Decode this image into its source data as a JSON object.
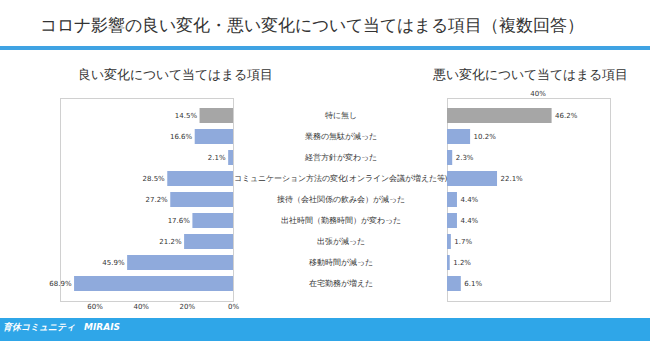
{
  "title": "コロナ影響の良い変化・悪い変化について当てはまる項目（複数回答）",
  "footer": "育休コミュニティ　MIRAIS",
  "chart_data": [
    {
      "type": "bar",
      "title": "良い変化について当てはまる項目",
      "orientation": "horizontal",
      "categories": [
        "特に無し",
        "業務の無駄が減った",
        "経営方針が変わった",
        "コミュニケーション方法の変化(オンライン会議が増えた等)",
        "接待（会社関係の飲み会）が減った",
        "出社時間（勤務時間）が変わった",
        "出張が減った",
        "移動時間が減った",
        "在宅勤務が増えた"
      ],
      "values": [
        14.5,
        16.6,
        2.1,
        28.5,
        27.2,
        17.6,
        21.2,
        45.9,
        68.9
      ],
      "value_labels": [
        "14.5%",
        "16.6%",
        "2.1%",
        "28.5%",
        "27.2%",
        "17.6%",
        "21.2%",
        "45.9%",
        "68.9%"
      ],
      "colors": [
        "#a6a6a6",
        "#8faadc",
        "#8faadc",
        "#8faadc",
        "#8faadc",
        "#8faadc",
        "#8faadc",
        "#8faadc",
        "#8faadc"
      ],
      "xlim": [
        0,
        75
      ],
      "xticks": [
        {
          "value": 60,
          "label": "60%"
        },
        {
          "value": 40,
          "label": "40%"
        },
        {
          "value": 20,
          "label": "20%"
        },
        {
          "value": 0,
          "label": "0%"
        }
      ],
      "data_labels": true,
      "tick_labels": "x"
    },
    {
      "type": "bar",
      "title": "悪い変化について当てはまる項目",
      "orientation": "horizontal",
      "categories": [
        "特に無し",
        "業務の無駄が減った",
        "経営方針が変わった",
        "コミュニケーション方法の変化(オンライン会議が増えた等)",
        "接待（会社関係の飲み会）が減った",
        "出社時間（勤務時間）が変わった",
        "出張が減った",
        "移動時間が減った",
        "在宅勤務が増えた"
      ],
      "values": [
        46.2,
        10.2,
        2.3,
        22.1,
        4.4,
        4.4,
        1.7,
        1.2,
        6.1
      ],
      "value_labels": [
        "46.2%",
        "10.2%",
        "2.3%",
        "22.1%",
        "4.4%",
        "4.4%",
        "1.7%",
        "1.2%",
        "6.1%"
      ],
      "colors": [
        "#a6a6a6",
        "#8faadc",
        "#8faadc",
        "#8faadc",
        "#8faadc",
        "#8faadc",
        "#8faadc",
        "#8faadc",
        "#8faadc"
      ],
      "xlim": [
        0,
        72
      ],
      "xticks": [
        {
          "value": 40,
          "label": "40%"
        }
      ],
      "data_labels": true
    }
  ]
}
